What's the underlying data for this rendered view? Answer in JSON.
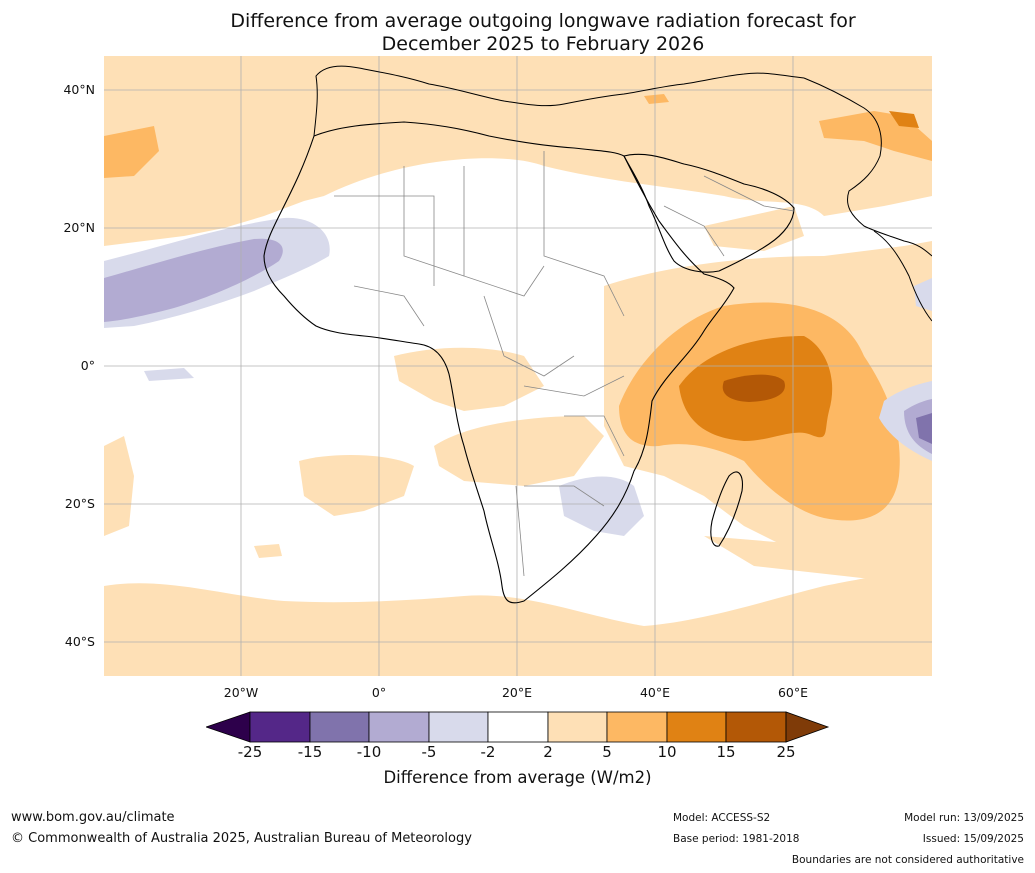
{
  "title": {
    "line1": "Difference from average outgoing longwave radiation forecast for",
    "line2": "December 2025 to February 2026"
  },
  "colors": {
    "n25plus": "#2d004b",
    "n25_15": "#542788",
    "n15_10": "#8073ac",
    "n10_5": "#b2abd2",
    "n5_2": "#d8daeb",
    "neutral": "#ffffff",
    "p2_5": "#fee0b6",
    "p5_10": "#fdb863",
    "p10_15": "#e08214",
    "p15_25": "#b35806",
    "p25plus": "#7f3b08",
    "coast": "#000000",
    "border": "#888888",
    "grid": "#b0b0b0"
  },
  "map": {
    "lat_labels": [
      "40°N",
      "20°N",
      "0°",
      "20°S",
      "40°S"
    ],
    "lon_labels": [
      "20°W",
      "0°",
      "20°E",
      "40°E",
      "60°E"
    ]
  },
  "colorbar": {
    "ticks": [
      "-25",
      "-15",
      "-10",
      "-5",
      "-2",
      "2",
      "5",
      "10",
      "15",
      "25"
    ],
    "label": "Difference from average (W/m2)"
  },
  "footer": {
    "website": "www.bom.gov.au/climate",
    "copyright": "© Commonwealth of Australia 2025, Australian Bureau of Meteorology",
    "model": "Model: ACCESS-S2",
    "base_period": "Base period: 1981-2018",
    "model_run": "Model run: 13/09/2025",
    "issued": "Issued: 15/09/2025",
    "disclaimer": "Boundaries are not considered authoritative"
  }
}
